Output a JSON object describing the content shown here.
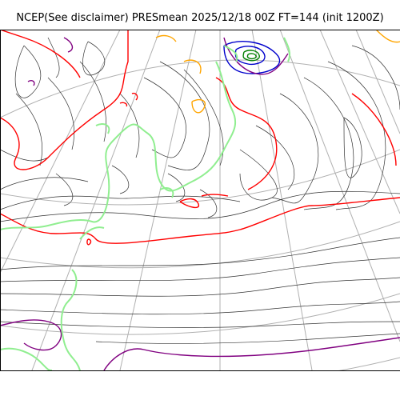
{
  "map": {
    "title": "NCEP(See disclaimer) PRESmean 2025/12/18 00Z FT=144 (init 1200Z)",
    "colors": {
      "graticule": "#b0b0b0",
      "isobar_thin": "#333333",
      "isobar_1012": "#ff0000",
      "isobar_purple": "#800080",
      "isobar_orange": "#ffa500",
      "isobar_blue": "#0000cc",
      "isobar_green": "#008000",
      "coastline": "#90ee90"
    },
    "layers": [
      "graticule",
      "isobars",
      "coastline"
    ]
  }
}
